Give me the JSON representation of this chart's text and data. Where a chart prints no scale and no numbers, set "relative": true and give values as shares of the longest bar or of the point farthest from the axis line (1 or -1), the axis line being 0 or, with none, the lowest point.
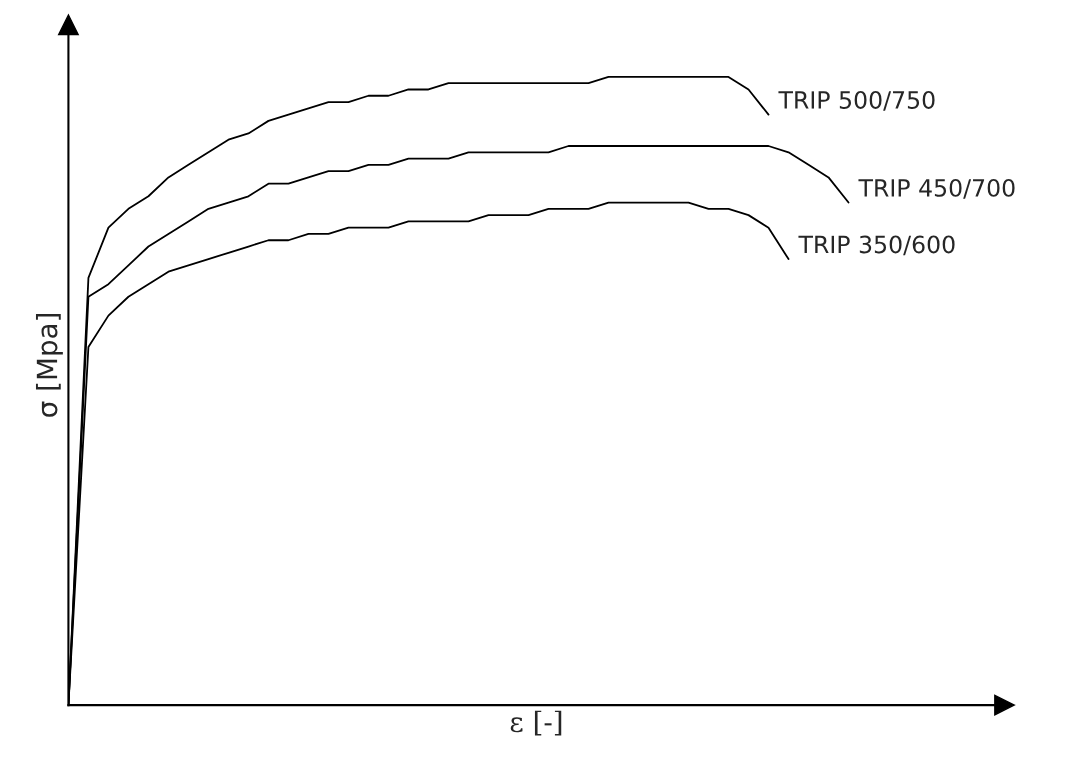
{
  "chart_data": {
    "type": "line",
    "relative": true,
    "xlabel": "ε [-]",
    "ylabel": "σ [Mpa]",
    "legend": false,
    "marker": "none",
    "line_style": "solid",
    "categories": [
      null,
      null,
      null,
      null,
      null,
      null,
      null,
      null,
      null,
      null,
      null,
      null,
      null,
      null,
      null,
      null,
      null,
      null,
      null,
      null,
      null,
      null,
      null,
      null,
      null,
      null,
      null,
      null,
      null,
      null,
      null,
      null,
      null,
      null,
      null,
      null,
      null,
      null,
      null,
      null
    ],
    "series": [
      {
        "name": "TRIP 500/750",
        "color": "#000000",
        "values": [
          0,
          0.68,
          0.76,
          0.79,
          0.81,
          0.84,
          0.86,
          0.88,
          0.9,
          0.91,
          0.93,
          0.94,
          0.95,
          0.96,
          0.96,
          0.97,
          0.97,
          0.98,
          0.98,
          0.99,
          0.99,
          0.99,
          0.99,
          0.99,
          0.99,
          0.99,
          0.99,
          1,
          1,
          1,
          1,
          1,
          1,
          1,
          0.98,
          0.94,
          null,
          null,
          null,
          null
        ]
      },
      {
        "name": "TRIP 450/700",
        "color": "#000000",
        "values": [
          0,
          0.65,
          0.67,
          0.7,
          0.73,
          0.75,
          0.77,
          0.79,
          0.8,
          0.81,
          0.83,
          0.83,
          0.84,
          0.85,
          0.85,
          0.86,
          0.86,
          0.87,
          0.87,
          0.87,
          0.88,
          0.88,
          0.88,
          0.88,
          0.88,
          0.89,
          0.89,
          0.89,
          0.89,
          0.89,
          0.89,
          0.89,
          0.89,
          0.89,
          0.89,
          0.89,
          0.88,
          0.86,
          0.84,
          0.8
        ]
      },
      {
        "name": "TRIP 350/600",
        "color": "#000000",
        "values": [
          0,
          0.57,
          0.62,
          0.65,
          0.67,
          0.69,
          0.7,
          0.71,
          0.72,
          0.73,
          0.74,
          0.74,
          0.75,
          0.75,
          0.76,
          0.76,
          0.76,
          0.77,
          0.77,
          0.77,
          0.77,
          0.78,
          0.78,
          0.78,
          0.79,
          0.79,
          0.79,
          0.8,
          0.8,
          0.8,
          0.8,
          0.8,
          0.79,
          0.79,
          0.78,
          0.76,
          0.71,
          null,
          null,
          null
        ]
      }
    ]
  }
}
